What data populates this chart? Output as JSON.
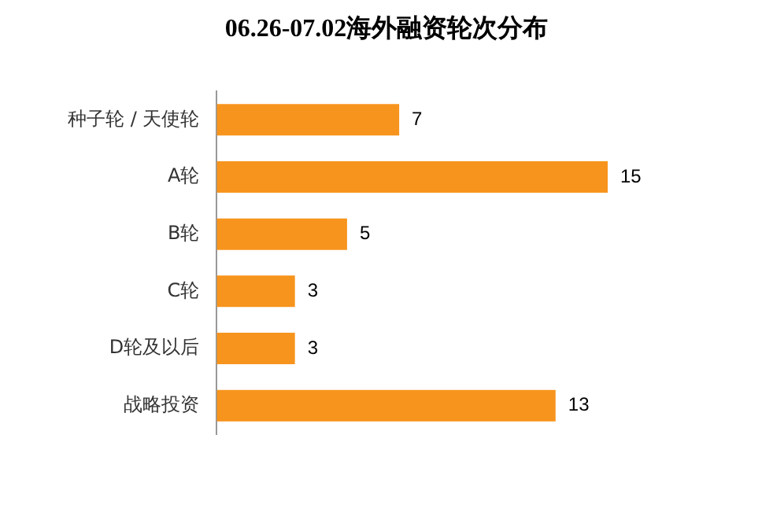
{
  "chart_data": {
    "type": "bar",
    "orientation": "horizontal",
    "title": "06.26-07.02海外融资轮次分布",
    "categories": [
      "种子轮 / 天使轮",
      "A轮",
      "B轮",
      "C轮",
      "D轮及以后",
      "战略投资"
    ],
    "values": [
      7,
      15,
      5,
      3,
      3,
      13
    ],
    "color": "#f7941d",
    "data_labels": true,
    "legend": false
  }
}
